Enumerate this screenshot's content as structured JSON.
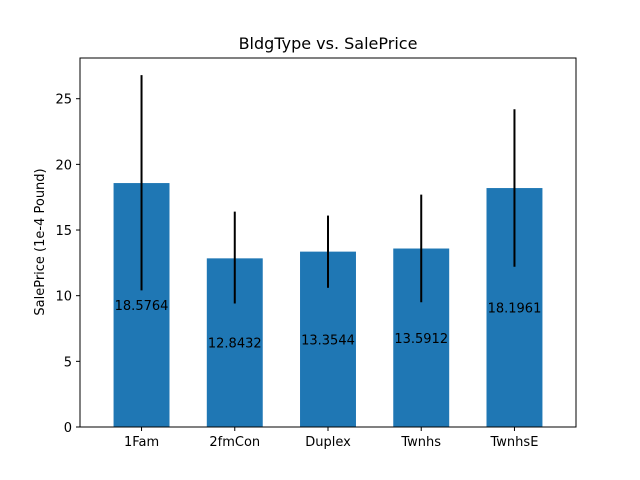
{
  "chart_data": {
    "type": "bar",
    "title": "BldgType vs. SalePrice",
    "xlabel": "",
    "ylabel": "SalePrice (1e-4 Pound)",
    "categories": [
      "1Fam",
      "2fmCon",
      "Duplex",
      "Twnhs",
      "TwnhsE"
    ],
    "values": [
      18.5764,
      12.8432,
      13.3544,
      13.5912,
      18.1961
    ],
    "value_labels": [
      "18.5764",
      "12.8432",
      "13.3544",
      "13.5912",
      "18.1961"
    ],
    "error_low": [
      10.4,
      9.4,
      10.6,
      9.5,
      12.2
    ],
    "error_high": [
      26.8,
      16.4,
      16.1,
      17.7,
      24.2
    ],
    "ylim": [
      0,
      28.1
    ],
    "yticks": [
      0,
      5,
      10,
      15,
      20,
      25
    ],
    "grid": false,
    "bar_color": "#1f77b4",
    "error_color": "#000000"
  }
}
